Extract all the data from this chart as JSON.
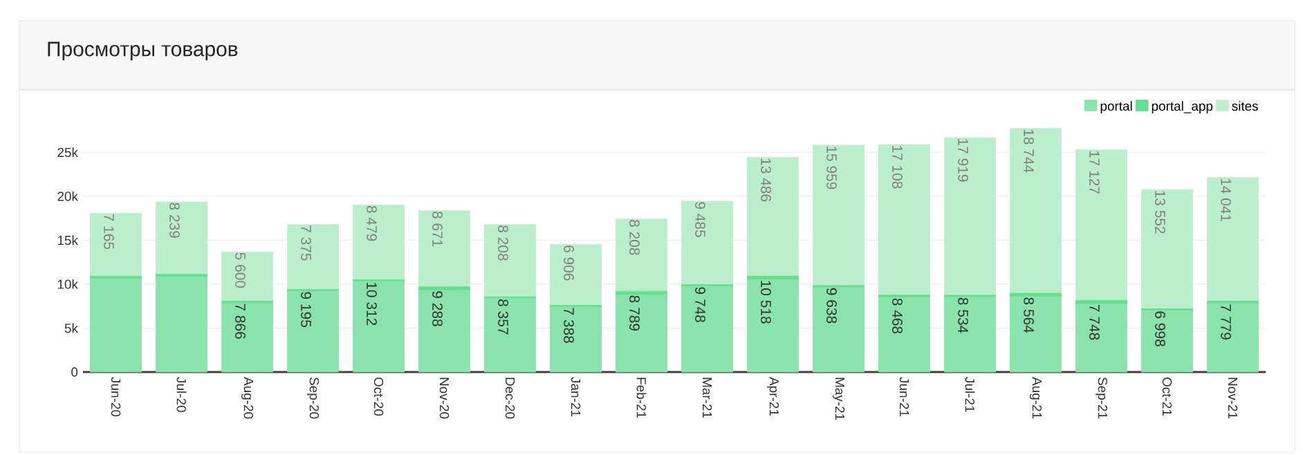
{
  "chart_data": {
    "type": "bar",
    "title": "Просмотры товаров",
    "stacked": true,
    "grid": "y",
    "legend": "top",
    "categories": [
      "Jun-20",
      "Jul-20",
      "Aug-20",
      "Sep-20",
      "Oct-20",
      "Nov-20",
      "Dec-20",
      "Jan-21",
      "Feb-21",
      "Mar-21",
      "Apr-21",
      "May-21",
      "Jun-21",
      "Jul-21",
      "Aug-21",
      "Sep-21",
      "Oct-21",
      "Nov-21"
    ],
    "ylim": [
      0,
      28000
    ],
    "yticks": [
      0,
      {
        "value": 5000,
        "label": "5k"
      },
      {
        "value": 10000,
        "label": "10k"
      },
      {
        "value": 15000,
        "label": "15k"
      },
      {
        "value": 20000,
        "label": "20k"
      },
      {
        "value": 25000,
        "label": "25k"
      }
    ],
    "series": [
      {
        "name": "portal",
        "color": "#8ae3aa",
        "values": [
          10600,
          10800,
          7866,
          9195,
          10312,
          9288,
          8357,
          7388,
          8789,
          9748,
          10518,
          9638,
          8468,
          8534,
          8564,
          7748,
          6998,
          7779
        ],
        "value_labels": [
          null,
          null,
          "7 866",
          "9 195",
          "10 312",
          "9 288",
          "8 357",
          "7 388",
          "8 789",
          "9 748",
          "10 518",
          "9 638",
          "8 468",
          "8 534",
          "8 564",
          "7 748",
          "6 998",
          "7 779"
        ]
      },
      {
        "name": "portal_app",
        "color": "#64de8f",
        "values": [
          300,
          300,
          200,
          200,
          200,
          400,
          200,
          200,
          400,
          200,
          400,
          200,
          300,
          200,
          400,
          400,
          200,
          300
        ]
      },
      {
        "name": "sites",
        "color": "#bbeecb",
        "values": [
          7165,
          8239,
          5600,
          7375,
          8479,
          8671,
          8208,
          6906,
          8208,
          9485,
          13486,
          15959,
          17108,
          17919,
          18744,
          17127,
          13552,
          14041
        ],
        "value_labels": [
          "7 165",
          "8 239",
          "5 600",
          "7 375",
          "8 479",
          "8 671",
          "8 208",
          "6 906",
          "8 208",
          "9 485",
          "13 486",
          "15 959",
          "17 108",
          "17 919",
          "18 744",
          "17 127",
          "13 552",
          "14 041"
        ]
      }
    ]
  }
}
